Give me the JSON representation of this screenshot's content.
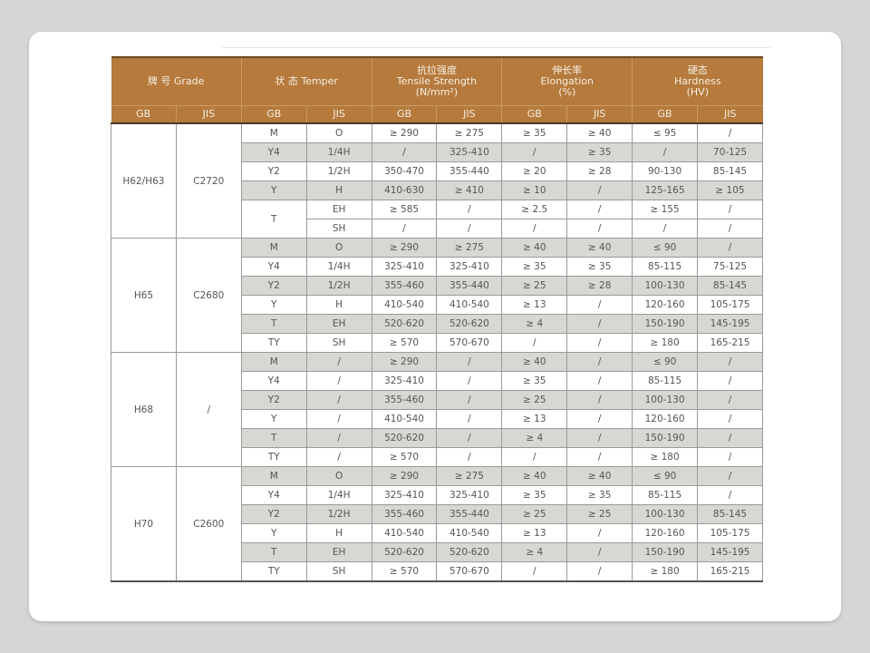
{
  "header": {
    "grade": "牌 号 Grade",
    "temper": "状 态 Temper",
    "tensile": [
      "抗拉强度",
      "Tensile Strength",
      "(N/mm²)"
    ],
    "elongation": [
      "伸长率",
      "Elongation",
      "(%)"
    ],
    "hardness": [
      "硬态",
      "Hardness",
      "(HV)"
    ],
    "sub": [
      "GB",
      "JIS",
      "GB",
      "JIS",
      "GB",
      "JIS",
      "GB",
      "JIS",
      "GB",
      "JIS"
    ]
  },
  "groups": [
    {
      "gb": "H62/H63",
      "jis": "C2720",
      "rows": [
        {
          "shade": false,
          "cells": [
            "M",
            "O",
            "≥ 290",
            "≥ 275",
            "≥ 35",
            "≥ 40",
            "≤ 95",
            "/"
          ]
        },
        {
          "shade": true,
          "cells": [
            "Y4",
            "1/4H",
            "/",
            "325-410",
            "/",
            "≥ 35",
            "/",
            "70-125"
          ]
        },
        {
          "shade": false,
          "cells": [
            "Y2",
            "1/2H",
            "350-470",
            "355-440",
            "≥ 20",
            "≥ 28",
            "90-130",
            "85-145"
          ]
        },
        {
          "shade": true,
          "cells": [
            "Y",
            "H",
            "410-630",
            "≥ 410",
            "≥ 10",
            "/",
            "125-165",
            "≥ 105"
          ]
        },
        {
          "shade": false,
          "tspan": 2,
          "cells": [
            "T",
            "EH",
            "≥ 585",
            "/",
            "≥ 2.5",
            "/",
            "≥ 155",
            "/"
          ]
        },
        {
          "shade": false,
          "cells": [
            "SH",
            "/",
            "/",
            "/",
            "/",
            "/",
            "/"
          ]
        }
      ]
    },
    {
      "gb": "H65",
      "jis": "C2680",
      "rows": [
        {
          "shade": true,
          "cells": [
            "M",
            "O",
            "≥ 290",
            "≥ 275",
            "≥ 40",
            "≥ 40",
            "≤ 90",
            "/"
          ]
        },
        {
          "shade": false,
          "cells": [
            "Y4",
            "1/4H",
            "325-410",
            "325-410",
            "≥ 35",
            "≥ 35",
            "85-115",
            "75-125"
          ]
        },
        {
          "shade": true,
          "cells": [
            "Y2",
            "1/2H",
            "355-460",
            "355-440",
            "≥ 25",
            "≥ 28",
            "100-130",
            "85-145"
          ]
        },
        {
          "shade": false,
          "cells": [
            "Y",
            "H",
            "410-540",
            "410-540",
            "≥ 13",
            "/",
            "120-160",
            "105-175"
          ]
        },
        {
          "shade": true,
          "cells": [
            "T",
            "EH",
            "520-620",
            "520-620",
            "≥ 4",
            "/",
            "150-190",
            "145-195"
          ]
        },
        {
          "shade": false,
          "cells": [
            "TY",
            "SH",
            "≥ 570",
            "570-670",
            "/",
            "/",
            "≥ 180",
            "165-215"
          ]
        }
      ]
    },
    {
      "gb": "H68",
      "jis": "/",
      "rows": [
        {
          "shade": true,
          "cells": [
            "M",
            "/",
            "≥ 290",
            "/",
            "≥ 40",
            "/",
            "≤ 90",
            "/"
          ]
        },
        {
          "shade": false,
          "cells": [
            "Y4",
            "/",
            "325-410",
            "/",
            "≥ 35",
            "/",
            "85-115",
            "/"
          ]
        },
        {
          "shade": true,
          "cells": [
            "Y2",
            "/",
            "355-460",
            "/",
            "≥ 25",
            "/",
            "100-130",
            "/"
          ]
        },
        {
          "shade": false,
          "cells": [
            "Y",
            "/",
            "410-540",
            "/",
            "≥ 13",
            "/",
            "120-160",
            "/"
          ]
        },
        {
          "shade": true,
          "cells": [
            "T",
            "/",
            "520-620",
            "/",
            "≥ 4",
            "/",
            "150-190",
            "/"
          ]
        },
        {
          "shade": false,
          "cells": [
            "TY",
            "/",
            "≥ 570",
            "/",
            "/",
            "/",
            "≥ 180",
            "/"
          ]
        }
      ]
    },
    {
      "gb": "H70",
      "jis": "C2600",
      "rows": [
        {
          "shade": true,
          "cells": [
            "M",
            "O",
            "≥ 290",
            "≥ 275",
            "≥ 40",
            "≥ 40",
            "≤ 90",
            "/"
          ]
        },
        {
          "shade": false,
          "cells": [
            "Y4",
            "1/4H",
            "325-410",
            "325-410",
            "≥ 35",
            "≥ 35",
            "85-115",
            "/"
          ]
        },
        {
          "shade": true,
          "cells": [
            "Y2",
            "1/2H",
            "355-460",
            "355-440",
            "≥ 25",
            "≥ 25",
            "100-130",
            "85-145"
          ]
        },
        {
          "shade": false,
          "cells": [
            "Y",
            "H",
            "410-540",
            "410-540",
            "≥ 13",
            "/",
            "120-160",
            "105-175"
          ]
        },
        {
          "shade": true,
          "cells": [
            "T",
            "EH",
            "520-620",
            "520-620",
            "≥ 4",
            "/",
            "150-190",
            "145-195"
          ]
        },
        {
          "shade": false,
          "cells": [
            "TY",
            "SH",
            "≥ 570",
            "570-670",
            "/",
            "/",
            "≥ 180",
            "165-215"
          ]
        }
      ]
    }
  ]
}
